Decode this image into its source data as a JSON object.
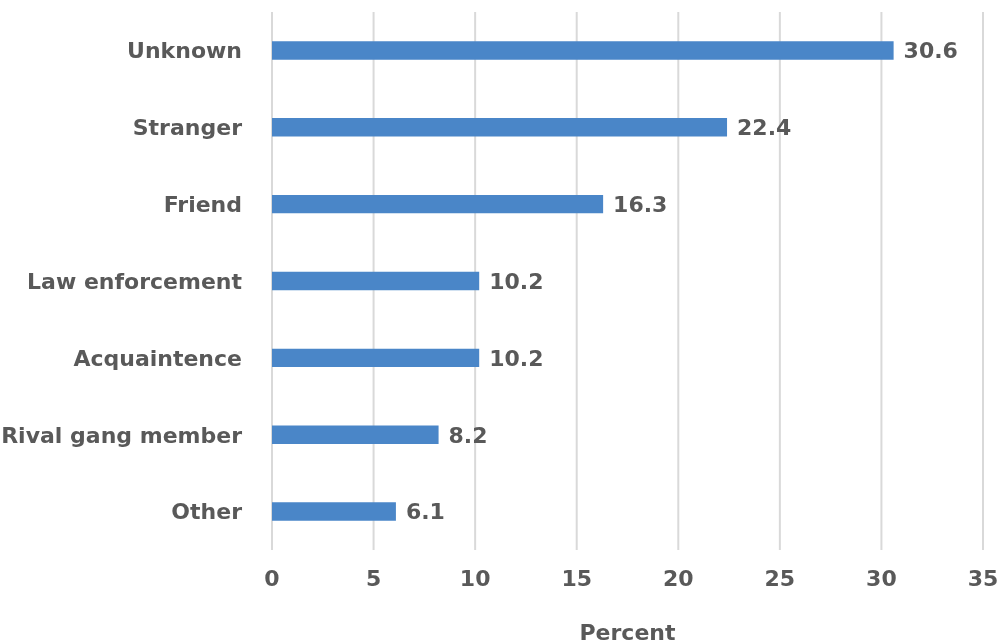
{
  "chart_data": {
    "type": "bar",
    "orientation": "horizontal",
    "xlabel": "Percent",
    "categories": [
      "Unknown",
      "Stranger",
      "Friend",
      "Law enforcement",
      "Acquaintence",
      "Rival gang member",
      "Other"
    ],
    "values": [
      30.6,
      22.4,
      16.3,
      10.2,
      10.2,
      8.2,
      6.1
    ],
    "color": "#4a86c8",
    "data_labels": true,
    "xlim": [
      0,
      35
    ],
    "xticks": [
      0,
      5,
      10,
      15,
      20,
      25,
      30,
      35
    ],
    "grid": "x"
  }
}
